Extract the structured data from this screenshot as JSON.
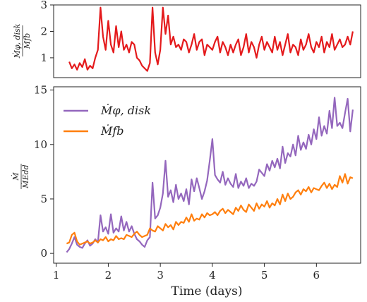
{
  "chart_data": [
    {
      "type": "line",
      "panel": "top",
      "ylabel_num": "Ṁφ, disk",
      "ylabel_den": "Ṁfb",
      "xlim": [
        0.95,
        6.85
      ],
      "ylim": [
        0.25,
        3.0
      ],
      "yticks": [
        1,
        2,
        3
      ],
      "grid": false,
      "series": [
        {
          "color": "#e41a1c",
          "x": [
            1.25,
            1.3,
            1.35,
            1.4,
            1.45,
            1.5,
            1.55,
            1.6,
            1.65,
            1.7,
            1.75,
            1.8,
            1.85,
            1.9,
            1.95,
            2.0,
            2.05,
            2.1,
            2.15,
            2.2,
            2.25,
            2.3,
            2.35,
            2.4,
            2.45,
            2.5,
            2.55,
            2.6,
            2.65,
            2.7,
            2.75,
            2.8,
            2.85,
            2.9,
            2.95,
            3.0,
            3.05,
            3.1,
            3.15,
            3.2,
            3.25,
            3.3,
            3.35,
            3.4,
            3.45,
            3.5,
            3.55,
            3.6,
            3.65,
            3.7,
            3.75,
            3.8,
            3.85,
            3.9,
            3.95,
            4.0,
            4.05,
            4.1,
            4.15,
            4.2,
            4.25,
            4.3,
            4.35,
            4.4,
            4.45,
            4.5,
            4.55,
            4.6,
            4.65,
            4.7,
            4.75,
            4.8,
            4.85,
            4.9,
            4.95,
            5.0,
            5.05,
            5.1,
            5.15,
            5.2,
            5.25,
            5.3,
            5.35,
            5.4,
            5.45,
            5.5,
            5.55,
            5.6,
            5.65,
            5.7,
            5.75,
            5.8,
            5.85,
            5.9,
            5.95,
            6.0,
            6.05,
            6.1,
            6.15,
            6.2,
            6.25,
            6.3,
            6.35,
            6.4,
            6.45,
            6.5,
            6.55,
            6.6,
            6.65,
            6.7
          ],
          "y": [
            0.85,
            0.6,
            0.75,
            0.55,
            0.8,
            0.65,
            0.95,
            0.55,
            0.7,
            0.6,
            1.0,
            1.3,
            2.9,
            1.8,
            1.3,
            2.4,
            1.5,
            1.2,
            2.2,
            1.4,
            2.0,
            1.3,
            1.5,
            1.2,
            1.6,
            1.5,
            1.0,
            0.9,
            0.7,
            0.6,
            0.5,
            0.8,
            2.9,
            1.2,
            0.75,
            1.3,
            2.9,
            1.9,
            2.6,
            1.5,
            1.8,
            1.4,
            1.5,
            1.3,
            1.7,
            1.6,
            1.2,
            1.5,
            1.9,
            1.3,
            1.6,
            1.7,
            1.1,
            1.5,
            1.4,
            1.3,
            1.6,
            1.8,
            1.2,
            1.6,
            1.4,
            1.1,
            1.5,
            1.2,
            1.5,
            1.7,
            1.1,
            1.4,
            1.9,
            1.2,
            1.6,
            1.4,
            1.0,
            1.5,
            1.8,
            1.3,
            1.6,
            1.4,
            1.2,
            1.8,
            1.3,
            1.6,
            1.1,
            1.5,
            1.9,
            1.2,
            1.5,
            1.4,
            1.1,
            1.7,
            1.3,
            1.5,
            1.9,
            1.4,
            1.2,
            1.6,
            1.4,
            1.8,
            1.2,
            1.6,
            1.4,
            1.9,
            1.3,
            1.5,
            1.7,
            1.4,
            1.5,
            1.8,
            1.5,
            2.0
          ]
        }
      ]
    },
    {
      "type": "line",
      "panel": "bottom",
      "xlabel": "Time (days)",
      "ylabel_num": "Ṁ",
      "ylabel_den": "ṀEdd",
      "xlim": [
        0.95,
        6.85
      ],
      "ylim": [
        -0.9,
        15.3
      ],
      "xticks": [
        1,
        2,
        3,
        4,
        5,
        6
      ],
      "yticks": [
        0,
        5,
        10,
        15
      ],
      "legend": "top-left",
      "grid": false,
      "series": [
        {
          "name": "Ṁφ, disk",
          "color": "#9467bd",
          "x": [
            1.2,
            1.25,
            1.3,
            1.35,
            1.4,
            1.45,
            1.5,
            1.55,
            1.6,
            1.65,
            1.7,
            1.75,
            1.8,
            1.85,
            1.9,
            1.95,
            2.0,
            2.05,
            2.1,
            2.15,
            2.2,
            2.25,
            2.3,
            2.35,
            2.4,
            2.45,
            2.5,
            2.55,
            2.6,
            2.65,
            2.7,
            2.75,
            2.8,
            2.85,
            2.9,
            2.95,
            3.0,
            3.05,
            3.1,
            3.15,
            3.2,
            3.25,
            3.3,
            3.35,
            3.4,
            3.45,
            3.5,
            3.55,
            3.6,
            3.65,
            3.7,
            3.75,
            3.8,
            3.85,
            3.9,
            3.95,
            4.0,
            4.05,
            4.1,
            4.15,
            4.2,
            4.25,
            4.3,
            4.35,
            4.4,
            4.45,
            4.5,
            4.55,
            4.6,
            4.65,
            4.7,
            4.75,
            4.8,
            4.85,
            4.9,
            4.95,
            5.0,
            5.05,
            5.1,
            5.15,
            5.2,
            5.25,
            5.3,
            5.35,
            5.4,
            5.45,
            5.5,
            5.55,
            5.6,
            5.65,
            5.7,
            5.75,
            5.8,
            5.85,
            5.9,
            5.95,
            6.0,
            6.05,
            6.1,
            6.15,
            6.2,
            6.25,
            6.3,
            6.35,
            6.4,
            6.45,
            6.5,
            6.55,
            6.6,
            6.65,
            6.7
          ],
          "y": [
            0.1,
            0.4,
            0.9,
            1.5,
            0.8,
            0.6,
            0.5,
            0.9,
            1.2,
            0.7,
            0.9,
            1.3,
            1.0,
            3.5,
            2.0,
            2.4,
            1.8,
            3.6,
            1.9,
            2.3,
            2.0,
            3.4,
            2.1,
            2.9,
            2.0,
            2.5,
            1.8,
            1.3,
            1.1,
            0.8,
            0.6,
            1.2,
            1.5,
            6.5,
            3.2,
            3.5,
            4.2,
            5.5,
            8.5,
            5.2,
            5.8,
            4.7,
            6.3,
            5.0,
            5.5,
            4.8,
            5.9,
            4.5,
            6.8,
            5.7,
            6.9,
            6.0,
            5.0,
            5.7,
            6.7,
            8.5,
            10.5,
            7.2,
            6.8,
            6.5,
            7.5,
            6.3,
            6.9,
            6.4,
            6.1,
            7.3,
            6.0,
            6.6,
            6.2,
            6.9,
            6.0,
            6.4,
            6.2,
            6.6,
            7.7,
            7.4,
            7.1,
            8.2,
            7.6,
            8.5,
            7.9,
            8.7,
            7.8,
            9.8,
            8.3,
            9.2,
            8.9,
            10.0,
            9.0,
            10.8,
            9.5,
            10.2,
            9.6,
            10.9,
            10.0,
            11.4,
            10.5,
            12.5,
            10.8,
            11.7,
            11.0,
            13.1,
            11.5,
            14.3,
            11.7,
            12.0,
            11.5,
            12.9,
            14.2,
            11.2,
            13.2
          ]
        },
        {
          "name": "Ṁfb",
          "color": "#ff7f0e",
          "x": [
            1.2,
            1.25,
            1.3,
            1.35,
            1.4,
            1.45,
            1.5,
            1.55,
            1.6,
            1.65,
            1.7,
            1.75,
            1.8,
            1.85,
            1.9,
            1.95,
            2.0,
            2.05,
            2.1,
            2.15,
            2.2,
            2.25,
            2.3,
            2.35,
            2.4,
            2.45,
            2.5,
            2.55,
            2.6,
            2.65,
            2.7,
            2.75,
            2.8,
            2.85,
            2.9,
            2.95,
            3.0,
            3.05,
            3.1,
            3.15,
            3.2,
            3.25,
            3.3,
            3.35,
            3.4,
            3.45,
            3.5,
            3.55,
            3.6,
            3.65,
            3.7,
            3.75,
            3.8,
            3.85,
            3.9,
            3.95,
            4.0,
            4.05,
            4.1,
            4.15,
            4.2,
            4.25,
            4.3,
            4.35,
            4.4,
            4.45,
            4.5,
            4.55,
            4.6,
            4.65,
            4.7,
            4.75,
            4.8,
            4.85,
            4.9,
            4.95,
            5.0,
            5.05,
            5.1,
            5.15,
            5.2,
            5.25,
            5.3,
            5.35,
            5.4,
            5.45,
            5.5,
            5.55,
            5.6,
            5.65,
            5.7,
            5.75,
            5.8,
            5.85,
            5.9,
            5.95,
            6.0,
            6.05,
            6.1,
            6.15,
            6.2,
            6.25,
            6.3,
            6.35,
            6.4,
            6.45,
            6.5,
            6.55,
            6.6,
            6.65,
            6.7
          ],
          "y": [
            0.9,
            1.0,
            1.7,
            1.9,
            1.1,
            0.8,
            0.9,
            1.0,
            1.1,
            0.9,
            1.0,
            1.2,
            1.0,
            1.3,
            1.2,
            1.5,
            1.1,
            1.3,
            1.2,
            1.6,
            1.3,
            1.4,
            1.3,
            1.7,
            1.6,
            1.5,
            1.8,
            2.0,
            1.7,
            1.5,
            1.6,
            1.7,
            2.3,
            2.1,
            2.0,
            2.5,
            2.3,
            2.1,
            2.7,
            2.4,
            2.6,
            2.2,
            2.9,
            2.6,
            2.9,
            2.8,
            3.3,
            2.9,
            3.6,
            3.0,
            3.2,
            3.1,
            3.6,
            3.3,
            3.7,
            3.5,
            3.6,
            3.8,
            3.5,
            3.9,
            4.1,
            3.7,
            4.0,
            3.8,
            3.6,
            4.2,
            3.9,
            4.4,
            4.0,
            3.8,
            4.5,
            4.2,
            3.9,
            4.6,
            4.1,
            4.5,
            4.3,
            4.8,
            4.2,
            4.6,
            4.4,
            5.0,
            4.5,
            5.4,
            4.8,
            5.5,
            5.0,
            5.2,
            5.6,
            5.8,
            5.4,
            5.9,
            5.7,
            6.1,
            5.6,
            6.0,
            5.9,
            5.8,
            6.2,
            6.5,
            6.0,
            6.4,
            5.9,
            6.3,
            6.1,
            7.1,
            6.5,
            7.3,
            6.4,
            7.0,
            6.9
          ]
        }
      ]
    }
  ]
}
